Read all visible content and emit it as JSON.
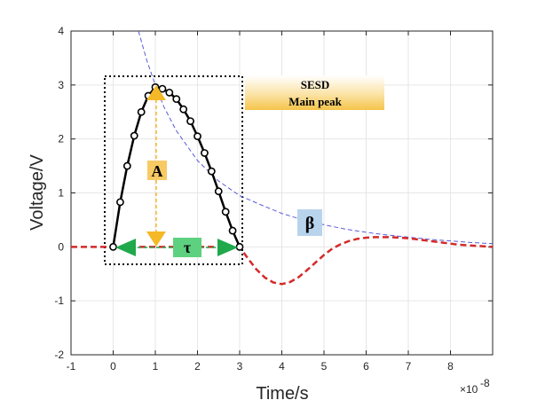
{
  "chart_data": {
    "type": "line",
    "xlabel": "Time/s",
    "ylabel": "Voltage/V",
    "x_exponent_label": "×10",
    "x_exponent_power": "-8",
    "xlim": [
      -1,
      9
    ],
    "ylim": [
      -2,
      4
    ],
    "x_ticks": [
      "-1",
      "0",
      "1",
      "2",
      "3",
      "4",
      "5",
      "6",
      "7",
      "8"
    ],
    "y_ticks": [
      "-2",
      "-1",
      "0",
      "1",
      "2",
      "3",
      "4"
    ],
    "grid": true,
    "series": [
      {
        "name": "",
        "style": "dashed",
        "color": "#d42a2a",
        "x": [
          -1.0,
          -0.5,
          0.0,
          3.0,
          3.2,
          3.4,
          3.6,
          3.8,
          4.0,
          4.2,
          4.4,
          4.6,
          4.8,
          5.0,
          5.2,
          5.4,
          5.6,
          5.8,
          6.0,
          6.2,
          6.4,
          6.6,
          6.8,
          7.0,
          7.2,
          7.4,
          7.6,
          7.8,
          8.0,
          8.2,
          8.4,
          8.6,
          8.8,
          9.0
        ],
        "y": [
          0.0,
          0.0,
          0.0,
          0.0,
          -0.22,
          -0.42,
          -0.57,
          -0.66,
          -0.69,
          -0.65,
          -0.56,
          -0.43,
          -0.29,
          -0.15,
          -0.03,
          0.05,
          0.11,
          0.15,
          0.17,
          0.18,
          0.18,
          0.18,
          0.17,
          0.16,
          0.14,
          0.12,
          0.1,
          0.08,
          0.06,
          0.04,
          0.03,
          0.02,
          0.01,
          0.0
        ]
      },
      {
        "name": "",
        "style": "solid-markers",
        "color": "#000000",
        "x": [
          0.0,
          0.167,
          0.333,
          0.5,
          0.667,
          0.833,
          1.0,
          1.167,
          1.333,
          1.5,
          1.667,
          1.833,
          2.0,
          2.167,
          2.333,
          2.5,
          2.667,
          2.833,
          3.0
        ],
        "y": [
          0.0,
          0.83,
          1.5,
          2.06,
          2.5,
          2.8,
          2.96,
          2.93,
          2.86,
          2.74,
          2.55,
          2.33,
          2.05,
          1.74,
          1.4,
          1.03,
          0.65,
          0.3,
          0.0
        ]
      },
      {
        "name": "",
        "style": "dashed-thin",
        "color": "#5a5ad8",
        "x": [
          0.6,
          0.8,
          1.0,
          1.2,
          1.5,
          2.0,
          2.5,
          3.0,
          3.5,
          4.0,
          4.5,
          5.0,
          5.5,
          6.0,
          6.5,
          7.0,
          7.5,
          8.0,
          8.5,
          9.0
        ],
        "y": [
          4.0,
          3.45,
          3.0,
          2.6,
          2.15,
          1.6,
          1.22,
          0.95,
          0.78,
          0.62,
          0.5,
          0.41,
          0.33,
          0.27,
          0.22,
          0.18,
          0.14,
          0.11,
          0.08,
          0.06
        ]
      }
    ],
    "annotations": {
      "box_label_line1": "SESD",
      "box_label_line2": "Main peak",
      "amplitude_label": "A",
      "width_label": "τ",
      "decay_label": "β"
    },
    "colors": {
      "amplitude_arrow": "#f5b826",
      "width_arrow": "#1fa94c",
      "amplitude_box": "#f7ca64",
      "width_box": "#5dd17f",
      "decay_box": "#b8d3ec",
      "label_gradient": "#f5c44a"
    }
  }
}
